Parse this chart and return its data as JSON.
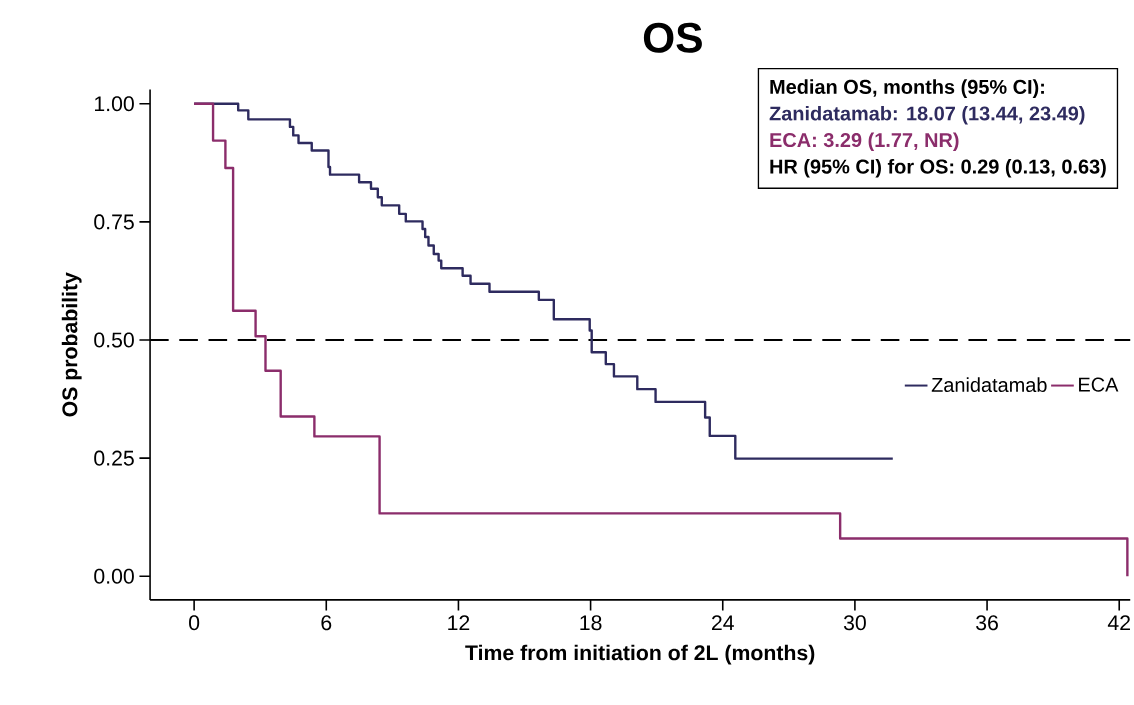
{
  "chart_data": {
    "type": "step",
    "title": "OS",
    "xlabel": "Time from initiation of 2L (months)",
    "ylabel": "OS probability",
    "xlim": [
      -2,
      42.5
    ],
    "ylim": [
      -0.05,
      1.03
    ],
    "xticks": [
      0,
      6,
      12,
      18,
      24,
      30,
      36,
      42
    ],
    "yticks": [
      {
        "value": 0,
        "label": "0.00"
      },
      {
        "value": 0.25,
        "label": "0.25"
      },
      {
        "value": 0.5,
        "label": "0.50"
      },
      {
        "value": 0.75,
        "label": "0.75"
      },
      {
        "value": 1,
        "label": "1.00"
      }
    ],
    "legend": "right",
    "ref_lines": [
      {
        "axis": "y",
        "value": 0.5,
        "color": "#000000",
        "line_style": "dashed"
      }
    ],
    "annotations": [
      "Median OS, months (95% CI):",
      "Zanidatamab: 18.07 (13.44, 23.49)",
      "ECA: 3.29 (1.77, NR)",
      "HR (95% CI) for OS: 0.29 (0.13, 0.63)"
    ],
    "series": [
      {
        "name": "Zanidatamab",
        "color": "#2e2b5f",
        "x": [
          0,
          2.0,
          2.46,
          4.35,
          4.5,
          4.74,
          5.34,
          6.1,
          6.17,
          7.49,
          8.03,
          8.34,
          8.52,
          9.31,
          9.61,
          10.37,
          10.49,
          10.64,
          10.88,
          11.1,
          11.22,
          12.19,
          12.55,
          13.41,
          15.65,
          16.33,
          17.96,
          18.05,
          18.69,
          19.06,
          20.12,
          20.95,
          23.2,
          23.41,
          24.57,
          31.72
        ],
        "values": [
          1.0,
          0.986,
          0.967,
          0.951,
          0.933,
          0.917,
          0.901,
          0.866,
          0.85,
          0.834,
          0.82,
          0.802,
          0.785,
          0.767,
          0.751,
          0.735,
          0.718,
          0.7,
          0.682,
          0.668,
          0.652,
          0.636,
          0.619,
          0.602,
          0.585,
          0.544,
          0.52,
          0.474,
          0.449,
          0.423,
          0.396,
          0.369,
          0.336,
          0.297,
          0.249,
          0.249
        ]
      },
      {
        "name": "ECA",
        "color": "#8b2d6b",
        "x": [
          0,
          0.86,
          1.42,
          1.77,
          2.79,
          3.24,
          3.93,
          5.46,
          8.42,
          29.33,
          42.37
        ],
        "values": [
          1.0,
          0.922,
          0.864,
          0.562,
          0.508,
          0.435,
          0.338,
          0.296,
          0.133,
          0.08,
          0.0
        ]
      }
    ]
  }
}
